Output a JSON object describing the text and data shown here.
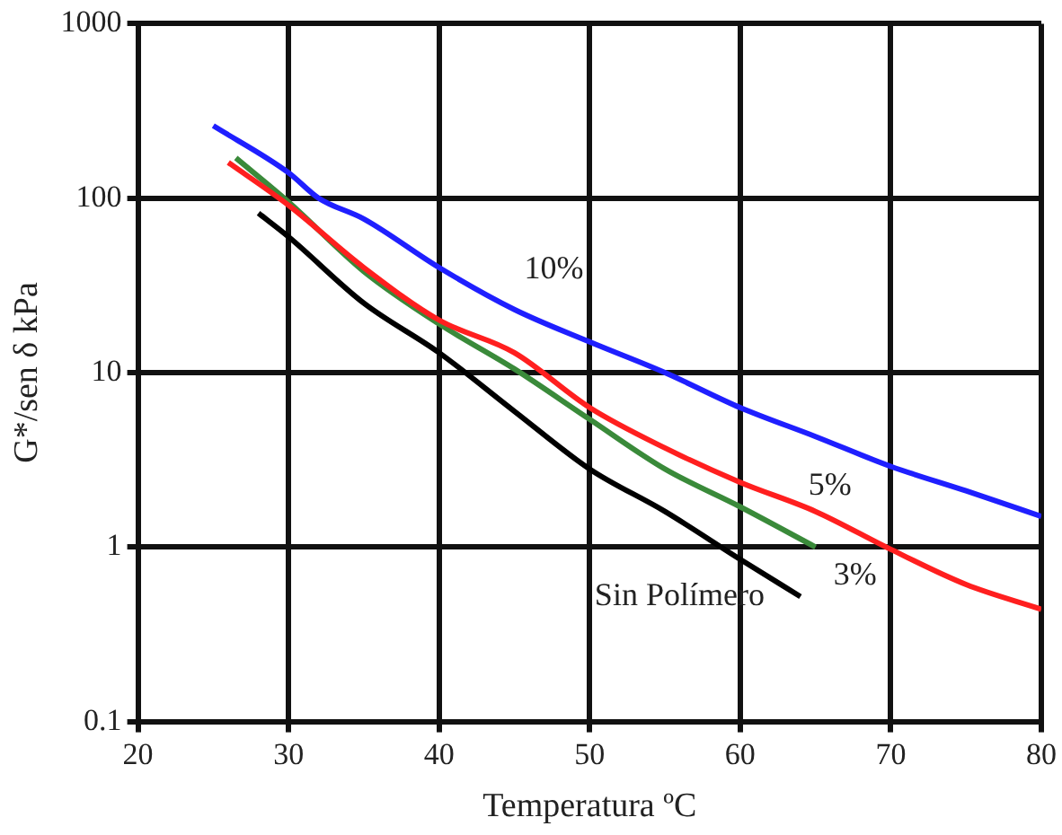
{
  "chart_data": {
    "type": "line",
    "xlabel": "Temperatura ºC",
    "ylabel": "G*/sen δ kPa",
    "log": "y",
    "grid": true,
    "legend": false,
    "marker": "none",
    "line_style": "solid",
    "xlim": [
      20,
      80
    ],
    "xticks": [
      20,
      30,
      40,
      50,
      60,
      70,
      80
    ],
    "ylim": [
      0.1,
      1000
    ],
    "yticks": [
      0.1,
      1,
      10,
      100,
      1000
    ],
    "series": [
      {
        "name": "10%",
        "color": "#1f1fff",
        "x": [
          25,
          30,
          32,
          35,
          40,
          45,
          50,
          55,
          60,
          65,
          70,
          75,
          80
        ],
        "values": [
          260,
          140,
          100,
          76,
          40,
          23,
          15,
          10,
          6.3,
          4.3,
          2.9,
          2.1,
          1.5
        ]
      },
      {
        "name": "5%",
        "color": "#ff1f1f",
        "x": [
          26,
          30,
          35,
          40,
          45,
          50,
          55,
          60,
          65,
          70,
          75,
          80
        ],
        "values": [
          160,
          91,
          40,
          20,
          13,
          6.3,
          3.7,
          2.35,
          1.6,
          0.97,
          0.61,
          0.44
        ]
      },
      {
        "name": "3%",
        "color": "#3a8a3a",
        "x": [
          26.5,
          30,
          35,
          40,
          45,
          50,
          55,
          60,
          65
        ],
        "values": [
          170,
          95,
          38,
          19,
          10.5,
          5.4,
          2.8,
          1.7,
          1.0
        ]
      },
      {
        "name": "Sin Polímero",
        "color": "#000000",
        "x": [
          28,
          30,
          35,
          40,
          45,
          50,
          55,
          60,
          64
        ],
        "values": [
          82,
          60,
          25,
          13,
          6,
          2.8,
          1.6,
          0.85,
          0.52
        ]
      }
    ]
  }
}
